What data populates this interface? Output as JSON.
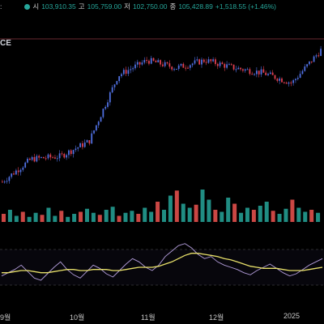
{
  "header": {
    "open_label": "시",
    "open": "103,910.35",
    "high_label": "고",
    "high": "105,759.00",
    "low_label": "저",
    "low": "102,750.00",
    "close_label": "종",
    "close": "105,428.89",
    "change": "+1,518.55 (+1.46%)"
  },
  "symbol_fragment": "CE",
  "x_axis_labels": [
    "9월",
    "10월",
    "11월",
    "12월",
    "2025"
  ],
  "colors": {
    "up": "#26a69a",
    "down": "#ef5350",
    "upCandle": "#4f6fe0",
    "downCandle": "#e04050",
    "rsi": "#b39ddb",
    "ma": "#e8e06a",
    "ref": "#d05060"
  },
  "chart_data": [
    {
      "type": "line",
      "panel": "price-candles",
      "x": [
        "9월",
        "10월",
        "11월",
        "12월",
        "2025"
      ],
      "close_trend": [
        53000,
        62000,
        63000,
        69000,
        95000,
        101000,
        98000,
        101000,
        98000,
        96000,
        92000,
        105000
      ],
      "title": ""
    },
    {
      "type": "bar",
      "panel": "volume",
      "values": [
        8,
        12,
        6,
        10,
        5,
        9,
        7,
        14,
        6,
        11,
        5,
        8,
        10,
        13,
        9,
        7,
        12,
        15,
        6,
        9,
        11,
        8,
        14,
        10,
        20,
        12,
        26,
        31,
        18,
        14,
        17,
        32,
        22,
        12,
        10,
        24,
        18,
        9,
        14,
        12,
        16,
        20,
        11,
        8,
        13,
        22,
        14,
        10,
        12,
        9
      ]
    },
    {
      "type": "line",
      "panel": "rsi",
      "series": [
        {
          "values": [
            42,
            45,
            48,
            52,
            46,
            40,
            38,
            44,
            50,
            55,
            48,
            43,
            40,
            46,
            52,
            49,
            44,
            41,
            47,
            53,
            58,
            55,
            50,
            47,
            52,
            60,
            65,
            70,
            72,
            68,
            62,
            58,
            60,
            55,
            52,
            50,
            48,
            45,
            43,
            47,
            50,
            53,
            49,
            45,
            42,
            44,
            48,
            52,
            55,
            58
          ]
        },
        {
          "values": [
            45,
            45,
            46,
            47,
            47,
            46,
            45,
            45,
            46,
            47,
            48,
            48,
            47,
            47,
            48,
            48,
            48,
            47,
            47,
            48,
            49,
            50,
            50,
            50,
            51,
            53,
            55,
            58,
            61,
            63,
            63,
            62,
            61,
            60,
            58,
            57,
            55,
            53,
            51,
            50,
            49,
            49,
            49,
            48,
            47,
            47,
            47,
            48,
            49,
            50
          ]
        }
      ]
    }
  ]
}
